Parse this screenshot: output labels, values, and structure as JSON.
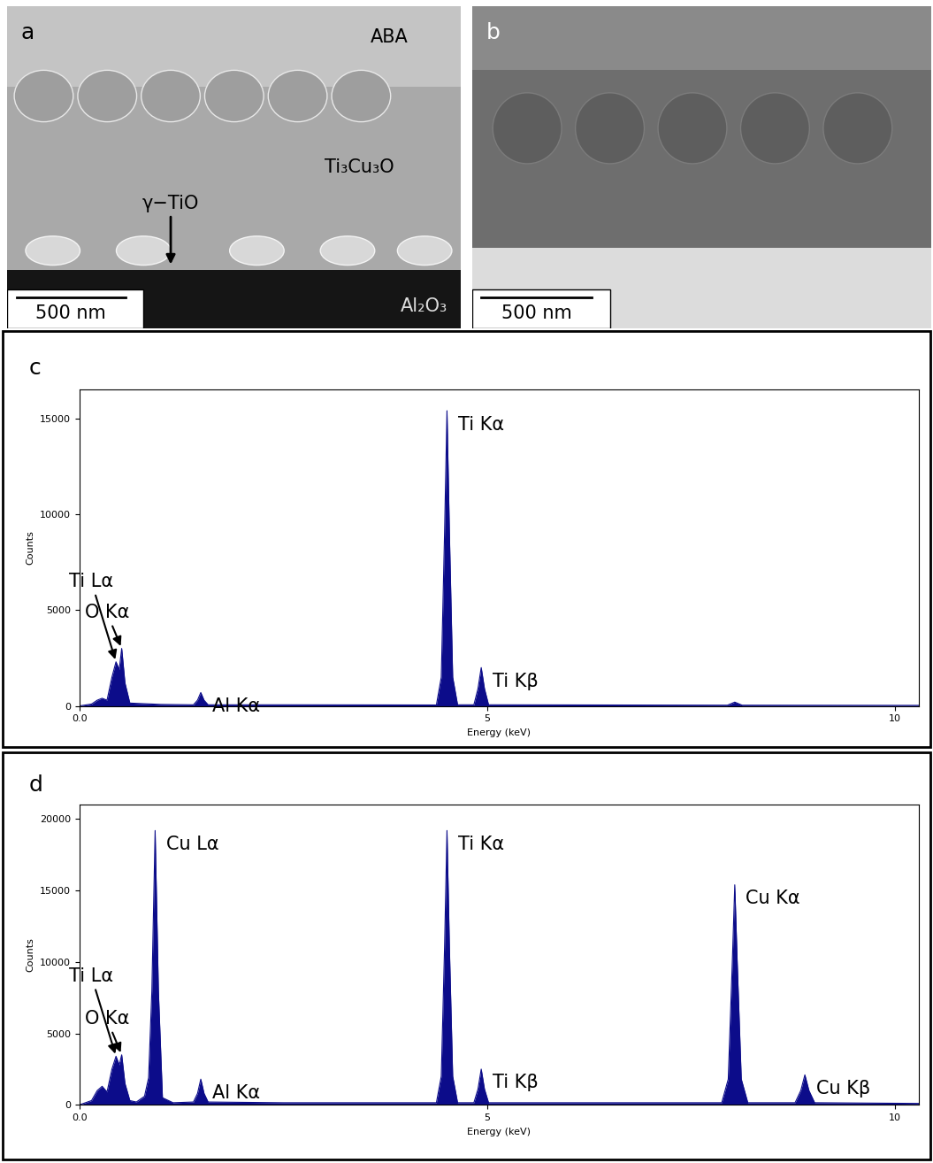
{
  "micrographs": [
    {
      "panel": "a",
      "labels": [
        "ABA",
        "Ti₃Cu₃O",
        "γ−TiO",
        "Al₂O₃"
      ],
      "scale_bar": "500 nm"
    },
    {
      "panel": "b",
      "scale_bar": "500 nm"
    }
  ],
  "chart_data": [
    {
      "type": "area",
      "panel": "c",
      "x_label": "Energy (keV)",
      "y_label": "Counts",
      "color": "#0c0c8a",
      "x": [
        0.0,
        0.15,
        0.22,
        0.28,
        0.34,
        0.4,
        0.45,
        0.49,
        0.52,
        0.56,
        0.62,
        1.0,
        1.4,
        1.45,
        1.49,
        1.53,
        1.58,
        2.5,
        4.38,
        4.44,
        4.48,
        4.51,
        4.54,
        4.58,
        4.64,
        4.84,
        4.89,
        4.93,
        4.97,
        5.02,
        7.95,
        8.04,
        8.13,
        10.3
      ],
      "values": [
        0,
        100,
        300,
        400,
        300,
        1500,
        2300,
        1900,
        3000,
        1200,
        150,
        80,
        60,
        300,
        700,
        300,
        60,
        60,
        50,
        1500,
        9000,
        15400,
        9000,
        1500,
        60,
        60,
        900,
        2000,
        900,
        60,
        40,
        200,
        40,
        30
      ],
      "xlim": [
        0,
        10.3
      ],
      "xticks": [
        {
          "value": 0,
          "label": "0.0"
        },
        5,
        10
      ],
      "ylim": [
        0,
        16500
      ],
      "yticks": [
        0,
        5000,
        10000,
        15000
      ],
      "annotations": [
        {
          "text": "Ti Lα",
          "x": 0.45,
          "y": 2300
        },
        {
          "text": "O Kα",
          "x": 0.52,
          "y": 3000
        },
        {
          "text": "Al Kα",
          "x": 1.49,
          "y": 700
        },
        {
          "text": "Ti Kα",
          "x": 4.51,
          "y": 15400
        },
        {
          "text": "Ti Kβ",
          "x": 4.93,
          "y": 2000
        }
      ]
    },
    {
      "type": "area",
      "panel": "d",
      "x_label": "Energy (keV)",
      "y_label": "Counts",
      "color": "#0c0c8a",
      "x": [
        0.0,
        0.15,
        0.22,
        0.28,
        0.34,
        0.4,
        0.45,
        0.49,
        0.52,
        0.56,
        0.62,
        0.7,
        0.8,
        0.85,
        0.89,
        0.93,
        0.97,
        1.02,
        1.15,
        1.4,
        1.45,
        1.49,
        1.53,
        1.58,
        2.5,
        4.38,
        4.44,
        4.48,
        4.51,
        4.54,
        4.58,
        4.64,
        4.84,
        4.89,
        4.93,
        4.97,
        5.02,
        7.88,
        7.96,
        8.01,
        8.04,
        8.07,
        8.12,
        8.2,
        8.78,
        8.85,
        8.9,
        8.95,
        9.02,
        10.3
      ],
      "values": [
        0,
        300,
        1000,
        1300,
        900,
        2500,
        3400,
        2800,
        3500,
        1500,
        300,
        200,
        600,
        1900,
        8000,
        19200,
        8000,
        500,
        150,
        200,
        800,
        1800,
        800,
        200,
        150,
        150,
        2000,
        11000,
        19200,
        11000,
        2000,
        150,
        150,
        1100,
        2500,
        1100,
        150,
        150,
        1800,
        10000,
        15400,
        10000,
        1800,
        150,
        150,
        1000,
        2100,
        1000,
        150,
        100
      ],
      "xlim": [
        0,
        10.3
      ],
      "xticks": [
        {
          "value": 0,
          "label": "0.0"
        },
        5,
        10
      ],
      "ylim": [
        0,
        21000
      ],
      "yticks": [
        0,
        5000,
        10000,
        15000,
        20000
      ],
      "annotations": [
        {
          "text": "Ti Lα",
          "x": 0.45,
          "y": 3400
        },
        {
          "text": "O Kα",
          "x": 0.52,
          "y": 3500
        },
        {
          "text": "Cu Lα",
          "x": 0.93,
          "y": 19200
        },
        {
          "text": "Al Kα",
          "x": 1.49,
          "y": 1800
        },
        {
          "text": "Ti Kα",
          "x": 4.51,
          "y": 19200
        },
        {
          "text": "Ti Kβ",
          "x": 4.93,
          "y": 2500
        },
        {
          "text": "Cu Kα",
          "x": 8.04,
          "y": 15400
        },
        {
          "text": "Cu Kβ",
          "x": 8.9,
          "y": 2100
        }
      ]
    }
  ]
}
